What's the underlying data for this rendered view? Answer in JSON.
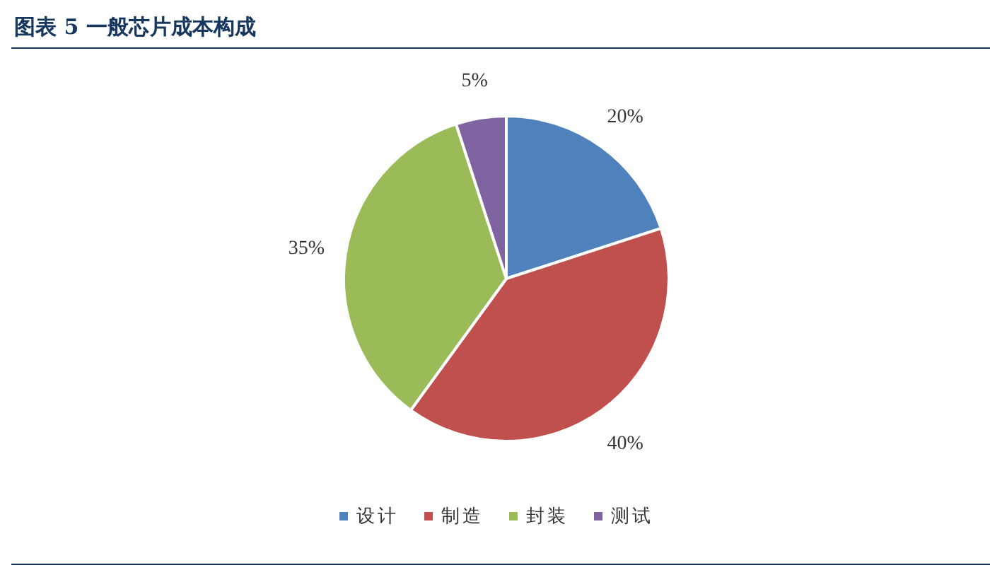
{
  "chart_data": {
    "type": "pie",
    "title": "图表 5 一般芯片成本构成",
    "categories": [
      "设计",
      "制造",
      "封装",
      "测试"
    ],
    "values": [
      20,
      40,
      35,
      5
    ],
    "colors": [
      "#4f81bd",
      "#c0504d",
      "#9bbb59",
      "#8064a2"
    ],
    "value_labels": [
      "20%",
      "40%",
      "35%",
      "5%"
    ],
    "legend": "bottom"
  }
}
